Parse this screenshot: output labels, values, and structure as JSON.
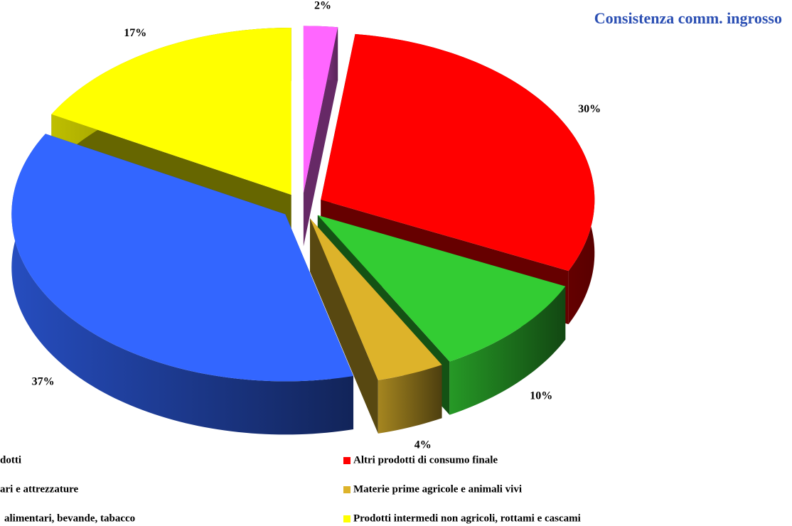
{
  "chart_data": {
    "type": "pie3d",
    "title": "Consistenza comm. ingrosso",
    "categories": [
      "dotti",
      "Altri prodotti di consumo finale",
      "ari e attrezzature",
      "Materie prime agricole e animali vivi",
      "alimentari, bevande, tabacco",
      "Prodotti intermedi non agricoli, rottami e cascami"
    ],
    "values": [
      2,
      30,
      10,
      4,
      37,
      17
    ],
    "value_labels": [
      "2%",
      "30%",
      "10%",
      "4%",
      "37%",
      "17%"
    ],
    "colors": [
      "#ff66ff",
      "#ff0000",
      "#33cc33",
      "#ddb32a",
      "#3366ff",
      "#ffff00"
    ]
  }
}
